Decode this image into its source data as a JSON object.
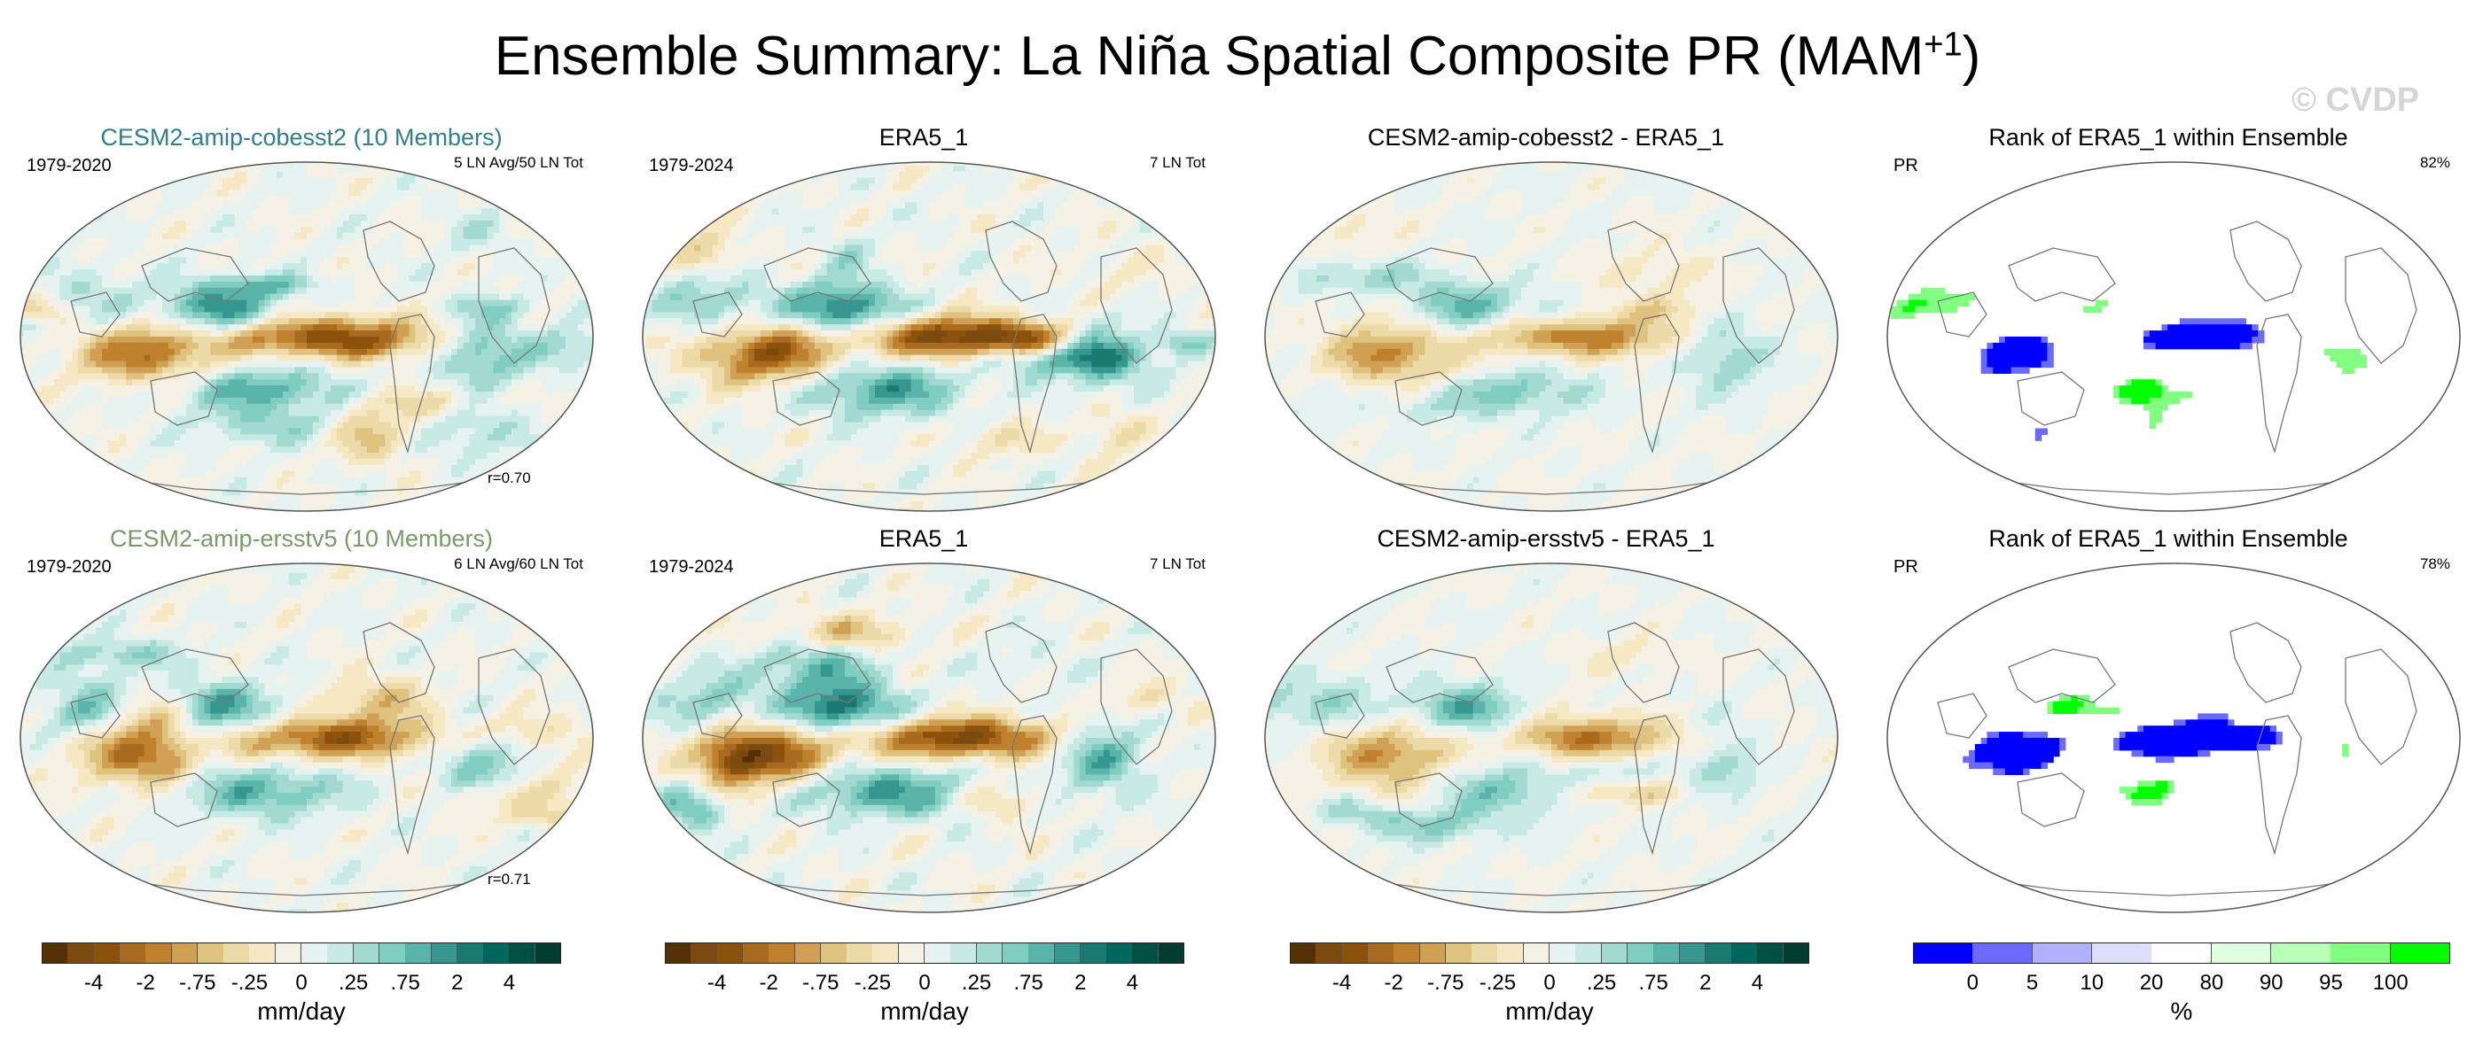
{
  "figure": {
    "title": "Ensemble Summary: La Niña Spatial Composite PR (MAM",
    "title_sup": "+1",
    "title_end": ")",
    "watermark": "© CVDP"
  },
  "chart_data": [
    {
      "type": "heatmap",
      "title": "CESM2-amip-cobesst2 (10 Members)",
      "title_color": "#2f7f8c",
      "left_label": "1979-2020",
      "right_label": "5 LN Avg/50 LN Tot",
      "corr_label": "r=0.70",
      "colormap": "diverging",
      "seed": 11,
      "strength": 1.0
    },
    {
      "type": "heatmap",
      "title": "ERA5_1",
      "left_label": "1979-2024",
      "right_label": "7 LN Tot",
      "colormap": "diverging",
      "seed": 23,
      "strength": 1.15
    },
    {
      "type": "heatmap",
      "title": "CESM2-amip-cobesst2 - ERA5_1",
      "colormap": "diverging",
      "seed": 37,
      "strength": 0.8
    },
    {
      "type": "heatmap",
      "title": "Rank of ERA5_1 within Ensemble",
      "left_label": "PR",
      "right_label": "82%",
      "colormap": "rank",
      "seed": 41,
      "strength": 1.0
    },
    {
      "type": "heatmap",
      "title": "CESM2-amip-ersstv5 (10 Members)",
      "title_color": "#7a9a6a",
      "left_label": "1979-2020",
      "right_label": "6 LN Avg/60 LN Tot",
      "corr_label": "r=0.71",
      "colormap": "diverging",
      "seed": 53,
      "strength": 1.0
    },
    {
      "type": "heatmap",
      "title": "ERA5_1",
      "left_label": "1979-2024",
      "right_label": "7 LN Tot",
      "colormap": "diverging",
      "seed": 67,
      "strength": 1.15
    },
    {
      "type": "heatmap",
      "title": "CESM2-amip-ersstv5 - ERA5_1",
      "colormap": "diverging",
      "seed": 71,
      "strength": 0.8
    },
    {
      "type": "heatmap",
      "title": "Rank of ERA5_1 within Ensemble",
      "left_label": "PR",
      "right_label": "78%",
      "colormap": "rank",
      "seed": 83,
      "strength": 1.0
    }
  ],
  "colorbars": {
    "diverging": {
      "colors": [
        "#543005",
        "#7a4a10",
        "#8c510a",
        "#a86a1f",
        "#bf812d",
        "#d0a055",
        "#dfc27d",
        "#ecdaa8",
        "#f6e8c3",
        "#f5f1e4",
        "#e7f3f0",
        "#c7eae5",
        "#a2d9d0",
        "#80cdc1",
        "#5ab4a9",
        "#35978f",
        "#1a7a72",
        "#01665e",
        "#014e45",
        "#003c30"
      ],
      "ticks": [
        "-4",
        "-2",
        "-.75",
        "-.25",
        "0",
        ".25",
        ".75",
        "2",
        "4"
      ],
      "units": "mm/day"
    },
    "rank": {
      "colors": [
        "#0000ff",
        "#6a6aff",
        "#b0b0ff",
        "#dedeff",
        "#ffffff",
        "#e0ffe0",
        "#b8ffb8",
        "#80ff80",
        "#00ff00"
      ],
      "ticks": [
        "0",
        "5",
        "10",
        "20",
        "80",
        "90",
        "95",
        "100"
      ],
      "units": "%"
    }
  }
}
